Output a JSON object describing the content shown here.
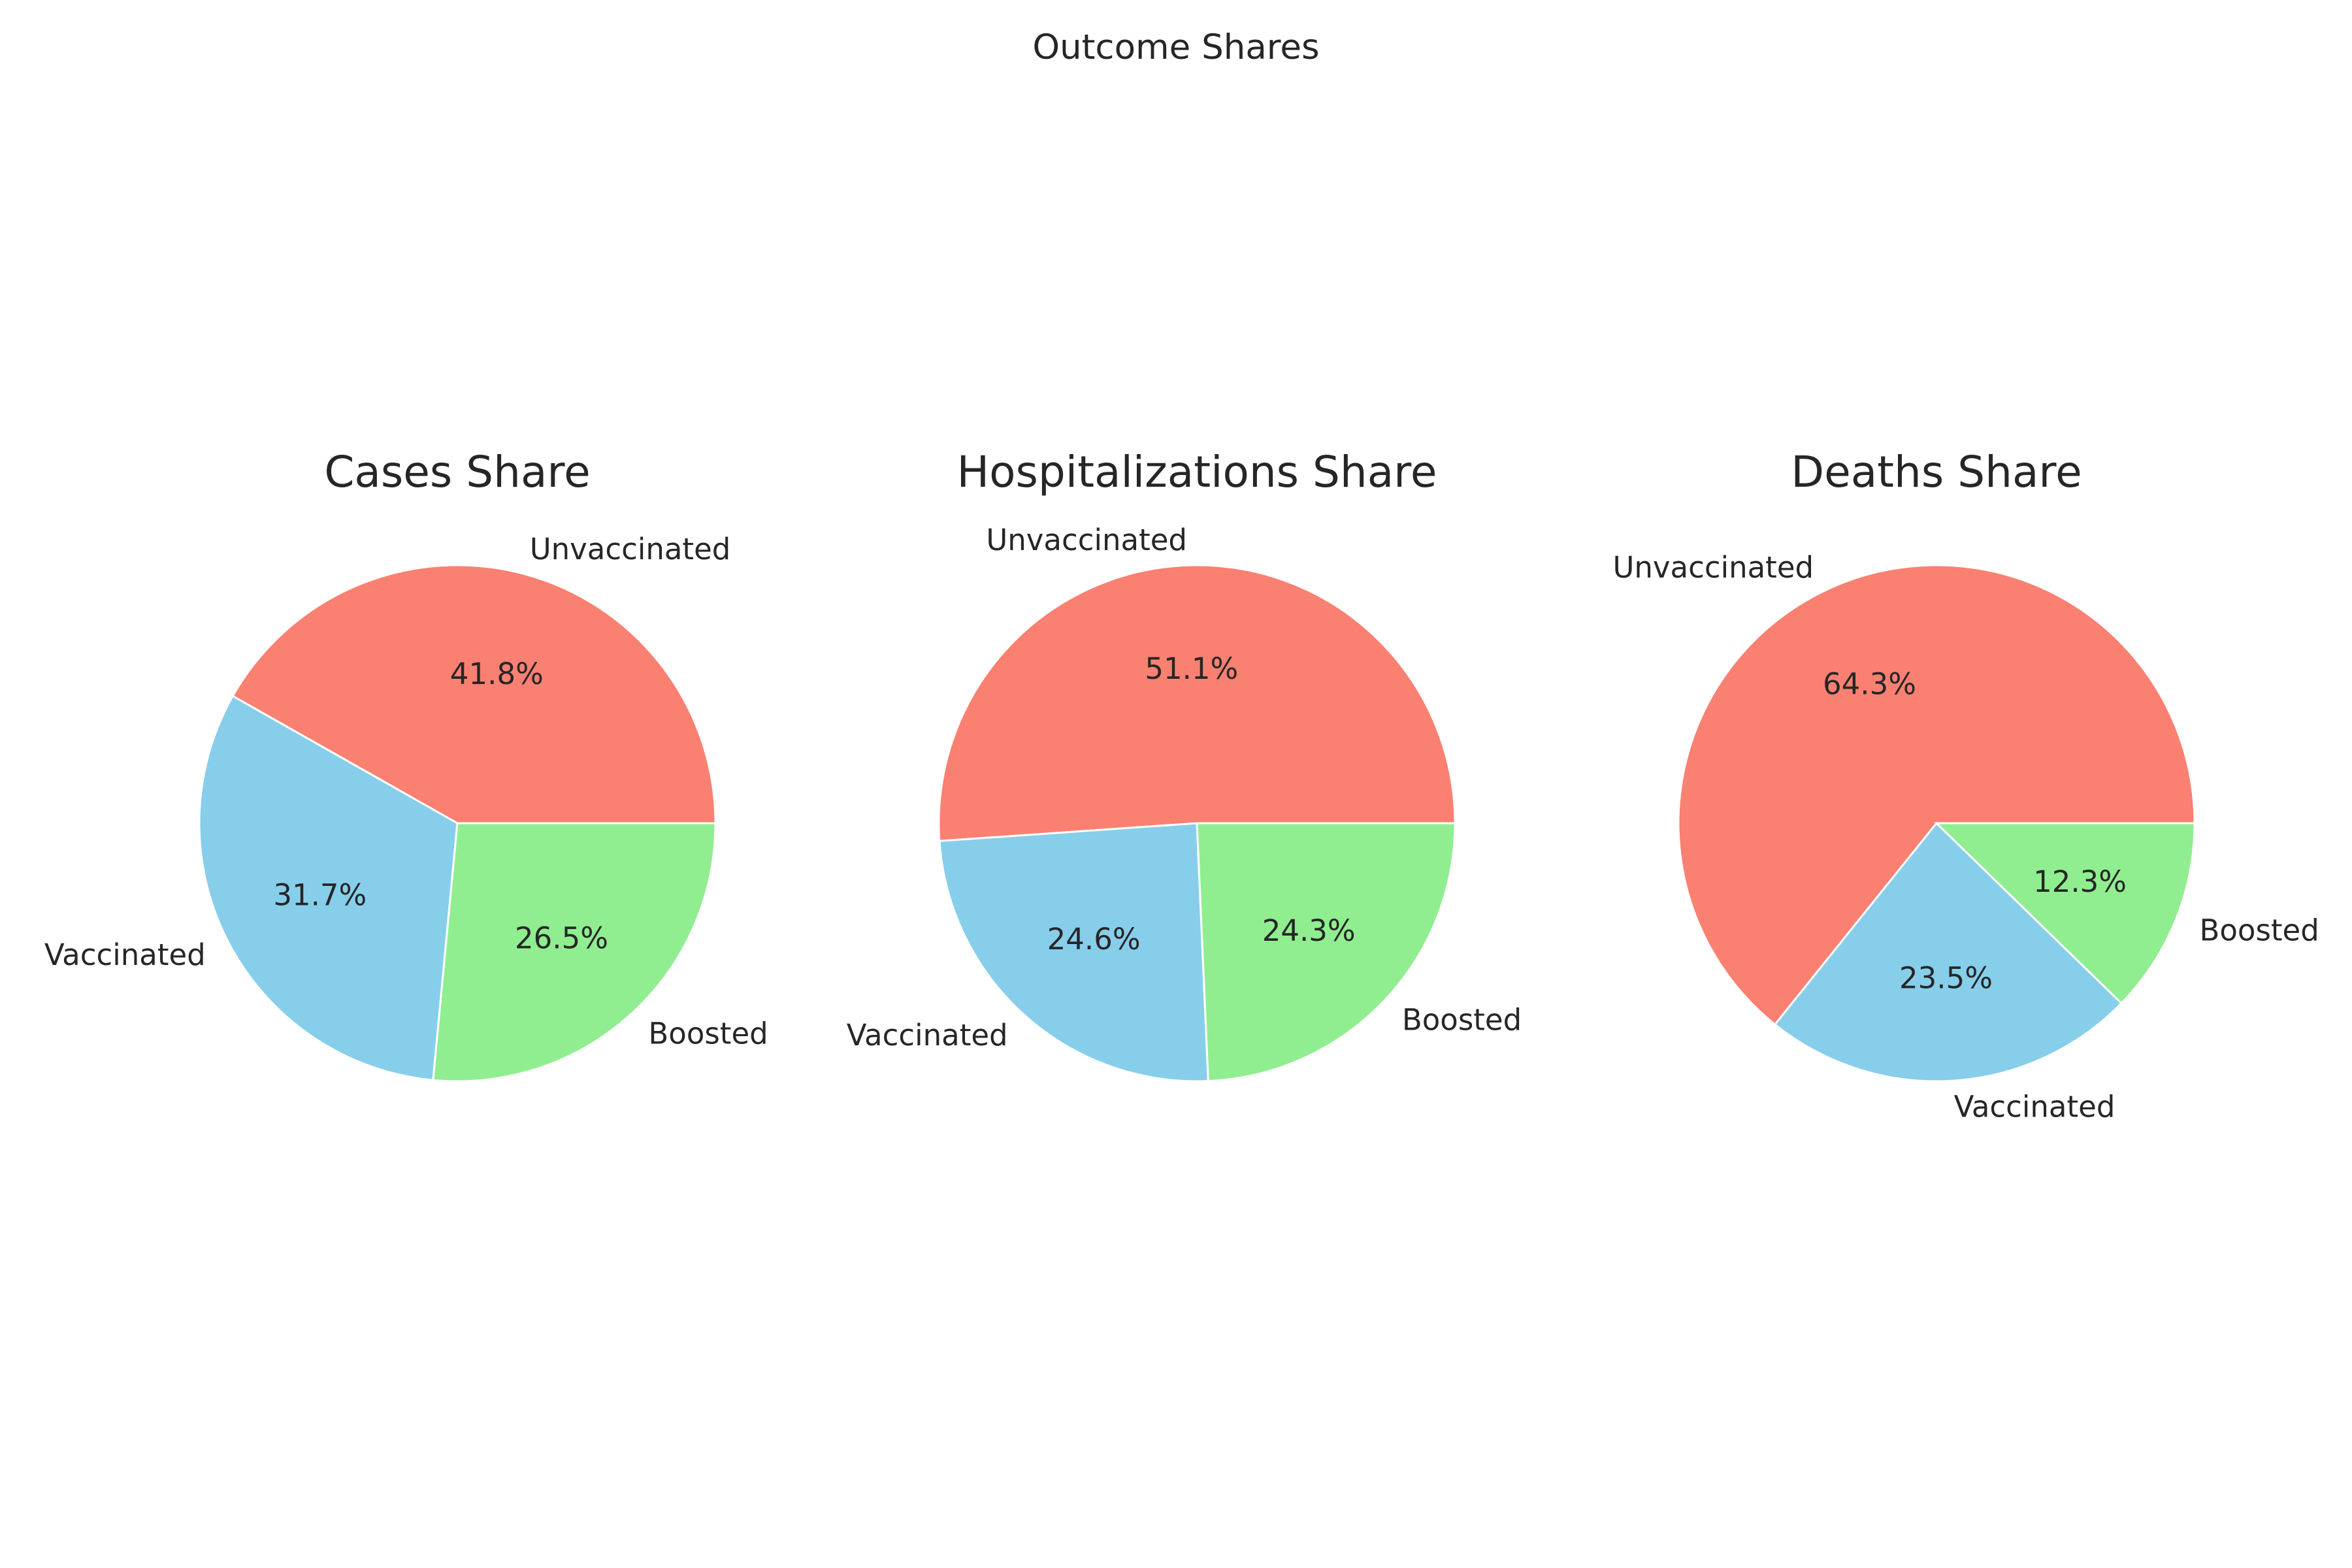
{
  "chart_data": {
    "suptitle": "Outcome Shares",
    "type": "pie",
    "categories": [
      "Unvaccinated",
      "Vaccinated",
      "Boosted"
    ],
    "colors": [
      "#fa8072",
      "#87ceeb",
      "#90ee90"
    ],
    "start_angle_deg": 0,
    "direction": "counterclockwise",
    "charts": [
      {
        "title": "Cases Share",
        "values": [
          41.8,
          31.7,
          26.5
        ],
        "labels": [
          "41.8%",
          "31.7%",
          "26.5%"
        ]
      },
      {
        "title": "Hospitalizations Share",
        "values": [
          51.1,
          24.6,
          24.3
        ],
        "labels": [
          "51.1%",
          "24.6%",
          "24.3%"
        ]
      },
      {
        "title": "Deaths Share",
        "values": [
          64.3,
          23.5,
          12.3
        ],
        "labels": [
          "64.3%",
          "23.5%",
          "12.3%"
        ]
      }
    ]
  }
}
